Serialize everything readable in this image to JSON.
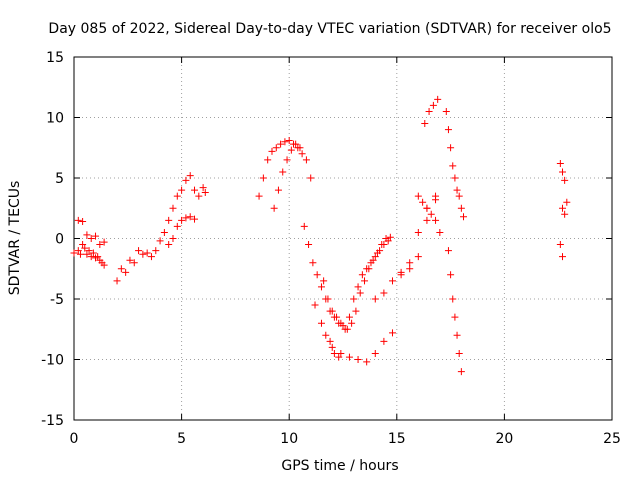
{
  "chart_data": {
    "type": "scatter",
    "title": "Day 085 of 2022, Sidereal Day-to-day VTEC variation (SDTVAR) for receiver olo5",
    "xlabel": "GPS time / hours",
    "ylabel": "SDTVAR / TECUs",
    "xlim": [
      0,
      25
    ],
    "ylim": [
      -15,
      15
    ],
    "xticks": [
      0,
      5,
      10,
      15,
      20,
      25
    ],
    "yticks": [
      -15,
      -10,
      -5,
      0,
      5,
      10,
      15
    ],
    "grid": true,
    "marker": "plus",
    "color": "#ff0000",
    "series": [
      {
        "x": [
          0.0,
          0.2,
          0.4,
          0.6,
          0.8,
          1.0,
          1.2,
          1.4,
          0.3,
          0.5,
          0.7,
          0.9,
          1.1,
          1.3,
          0.2,
          0.4,
          0.6,
          0.8,
          1.0,
          1.2,
          1.4,
          2.0,
          2.2,
          2.4,
          2.6,
          2.8,
          3.0,
          3.2,
          3.4,
          3.6,
          3.8,
          4.0,
          4.2,
          4.4,
          4.6,
          4.8,
          5.0,
          5.2,
          5.4,
          5.6,
          5.8,
          6.0,
          6.1,
          4.4,
          4.6,
          4.8,
          5.0,
          5.2,
          5.4,
          5.6,
          8.6,
          8.8,
          9.0,
          9.2,
          9.4,
          9.6,
          9.8,
          10.0,
          10.2,
          10.4,
          10.6,
          10.8,
          11.0,
          9.3,
          9.5,
          9.7,
          9.9,
          10.1,
          10.3,
          10.5,
          10.7,
          10.9,
          11.1,
          11.3,
          11.5,
          11.7,
          11.9,
          12.1,
          12.3,
          12.5,
          12.7,
          12.9,
          13.1,
          13.3,
          13.5,
          13.7,
          13.9,
          14.1,
          14.3,
          14.5,
          14.7,
          11.6,
          11.8,
          12.0,
          12.2,
          12.4,
          12.6,
          12.8,
          13.0,
          13.2,
          13.4,
          13.6,
          13.8,
          14.0,
          14.2,
          14.4,
          14.6,
          11.2,
          11.5,
          11.7,
          11.9,
          12.1,
          12.3,
          12.0,
          12.4,
          12.8,
          13.2,
          13.6,
          14.0,
          14.4,
          14.8,
          15.2,
          15.6,
          16.0,
          16.4,
          16.8,
          14.0,
          14.4,
          14.8,
          15.2,
          15.6,
          16.0,
          16.4,
          16.8,
          16.0,
          16.2,
          16.4,
          16.6,
          16.8,
          17.0,
          16.3,
          16.5,
          16.7,
          16.9,
          17.3,
          17.4,
          17.5,
          17.6,
          17.7,
          17.8,
          17.9,
          18.0,
          18.1,
          17.4,
          17.5,
          17.6,
          17.7,
          17.8,
          17.9,
          18.0,
          22.6,
          22.7,
          22.8,
          22.9,
          22.7,
          22.8,
          22.6,
          22.7
        ],
        "y": [
          -1.2,
          1.5,
          1.4,
          0.3,
          0.0,
          0.2,
          -0.5,
          -0.3,
          -1.3,
          -0.8,
          -1.0,
          -1.2,
          -1.5,
          -2.0,
          -1.0,
          -0.5,
          -1.3,
          -1.5,
          -1.6,
          -1.8,
          -2.2,
          -3.5,
          -2.5,
          -2.8,
          -1.8,
          -2.0,
          -1.0,
          -1.3,
          -1.2,
          -1.5,
          -1.0,
          -0.2,
          0.5,
          1.5,
          2.5,
          3.5,
          4.0,
          4.8,
          5.2,
          4.0,
          3.5,
          4.2,
          3.8,
          -0.5,
          0.0,
          1.0,
          1.5,
          1.7,
          1.8,
          1.6,
          3.5,
          5.0,
          6.5,
          7.2,
          7.5,
          7.8,
          8.0,
          8.1,
          7.8,
          7.5,
          7.0,
          6.5,
          5.0,
          2.5,
          4.0,
          5.5,
          6.5,
          7.3,
          7.8,
          7.5,
          1.0,
          -0.5,
          -2.0,
          -3.0,
          -4.0,
          -5.0,
          -6.0,
          -6.5,
          -7.0,
          -7.2,
          -7.5,
          -7.0,
          -6.0,
          -4.5,
          -3.5,
          -2.5,
          -1.8,
          -1.2,
          -0.5,
          0.0,
          0.1,
          -3.5,
          -5.0,
          -6.0,
          -6.5,
          -7.0,
          -7.5,
          -6.5,
          -5.0,
          -4.0,
          -3.0,
          -2.5,
          -2.0,
          -1.5,
          -1.0,
          -0.5,
          -0.2,
          -5.5,
          -7.0,
          -8.0,
          -8.5,
          -9.5,
          -9.8,
          -9.0,
          -9.5,
          -9.8,
          -10.0,
          -10.2,
          -9.5,
          -8.5,
          -7.8,
          -3.0,
          -2.5,
          -1.5,
          1.5,
          3.5,
          -5.0,
          -4.5,
          -3.5,
          -2.8,
          -2.0,
          0.5,
          2.5,
          3.2,
          3.5,
          3.0,
          2.5,
          2.0,
          1.5,
          0.5,
          9.5,
          10.5,
          11.0,
          11.5,
          10.5,
          9.0,
          7.5,
          6.0,
          5.0,
          4.0,
          3.5,
          2.5,
          1.8,
          -1.0,
          -3.0,
          -5.0,
          -6.5,
          -8.0,
          -9.5,
          -11.0,
          6.2,
          5.5,
          4.8,
          3.0,
          2.5,
          2.0,
          -0.5,
          -1.5
        ]
      }
    ]
  }
}
